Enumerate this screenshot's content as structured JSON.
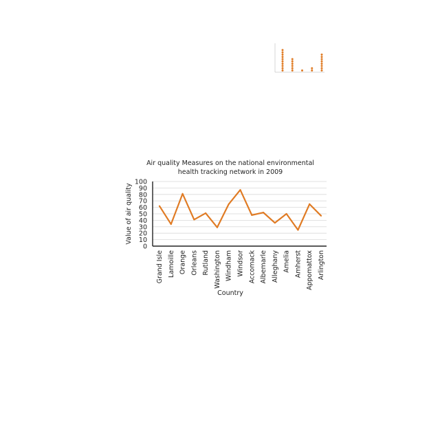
{
  "colors": {
    "series": "#e07b24",
    "axis": "#222222",
    "grid": "#d9d9d9"
  },
  "chart_data": [
    {
      "type": "line",
      "title_lines": [
        "Air quality Measures on the national environmental",
        "health tracking network in 2009"
      ],
      "xlabel": "Country",
      "ylabel": "Value of air quality",
      "ylim": [
        0,
        100
      ],
      "yticks": [
        0,
        10,
        20,
        30,
        40,
        50,
        60,
        70,
        80,
        90,
        100
      ],
      "grid": true,
      "categories": [
        "Grand Isle",
        "Lamoille",
        "Orange",
        "Orleans",
        "Rutland",
        "Washington",
        "Windham",
        "Windsor",
        "Accomack",
        "Albemarle",
        "Alleghany",
        "Amelia",
        "Amherst",
        "Appomattox",
        "Arlington"
      ],
      "series": [
        {
          "values": [
            62,
            34,
            81,
            41,
            51,
            29,
            65,
            87,
            48,
            52,
            36,
            50,
            25,
            65,
            47
          ]
        }
      ]
    },
    {
      "type": "scatter",
      "style": "dot-stack",
      "series": [
        {
          "values": [
            10,
            0,
            6,
            0,
            1,
            0,
            2,
            0,
            8
          ]
        }
      ]
    }
  ]
}
